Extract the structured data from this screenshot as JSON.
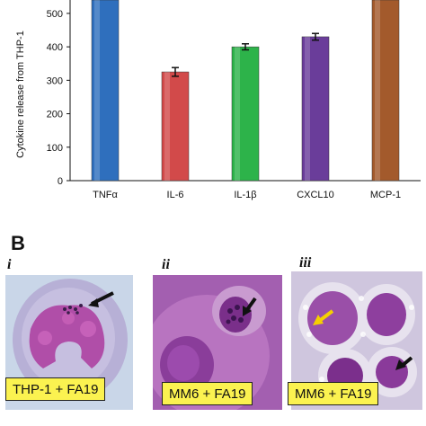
{
  "chart_data": {
    "type": "bar",
    "ylabel": "Cytokine release from THP-1",
    "ylim": [
      0,
      540
    ],
    "yticks": [
      0,
      100,
      200,
      300,
      400,
      500
    ],
    "categories": [
      "TNFα",
      "IL-6",
      "IL-1β",
      "CXCL10",
      "MCP-1"
    ],
    "values": [
      540,
      325,
      400,
      430,
      540
    ],
    "errors": [
      0,
      13,
      9,
      10,
      0
    ],
    "bar_colors": [
      "#2f6fbd",
      "#d24a4a",
      "#2db34a",
      "#6a3d9a",
      "#a35a2c"
    ],
    "grid": false
  },
  "panel_b": {
    "letter": "B",
    "panels": [
      {
        "sub": "i",
        "caption": "THP-1 + FA19"
      },
      {
        "sub": "ii",
        "caption": "MM6 + FA19"
      },
      {
        "sub": "iii",
        "caption": "MM6 + FA19"
      }
    ],
    "arrow_colors": [
      "#111111",
      "#111111",
      "#f5d000",
      "#111111"
    ]
  }
}
